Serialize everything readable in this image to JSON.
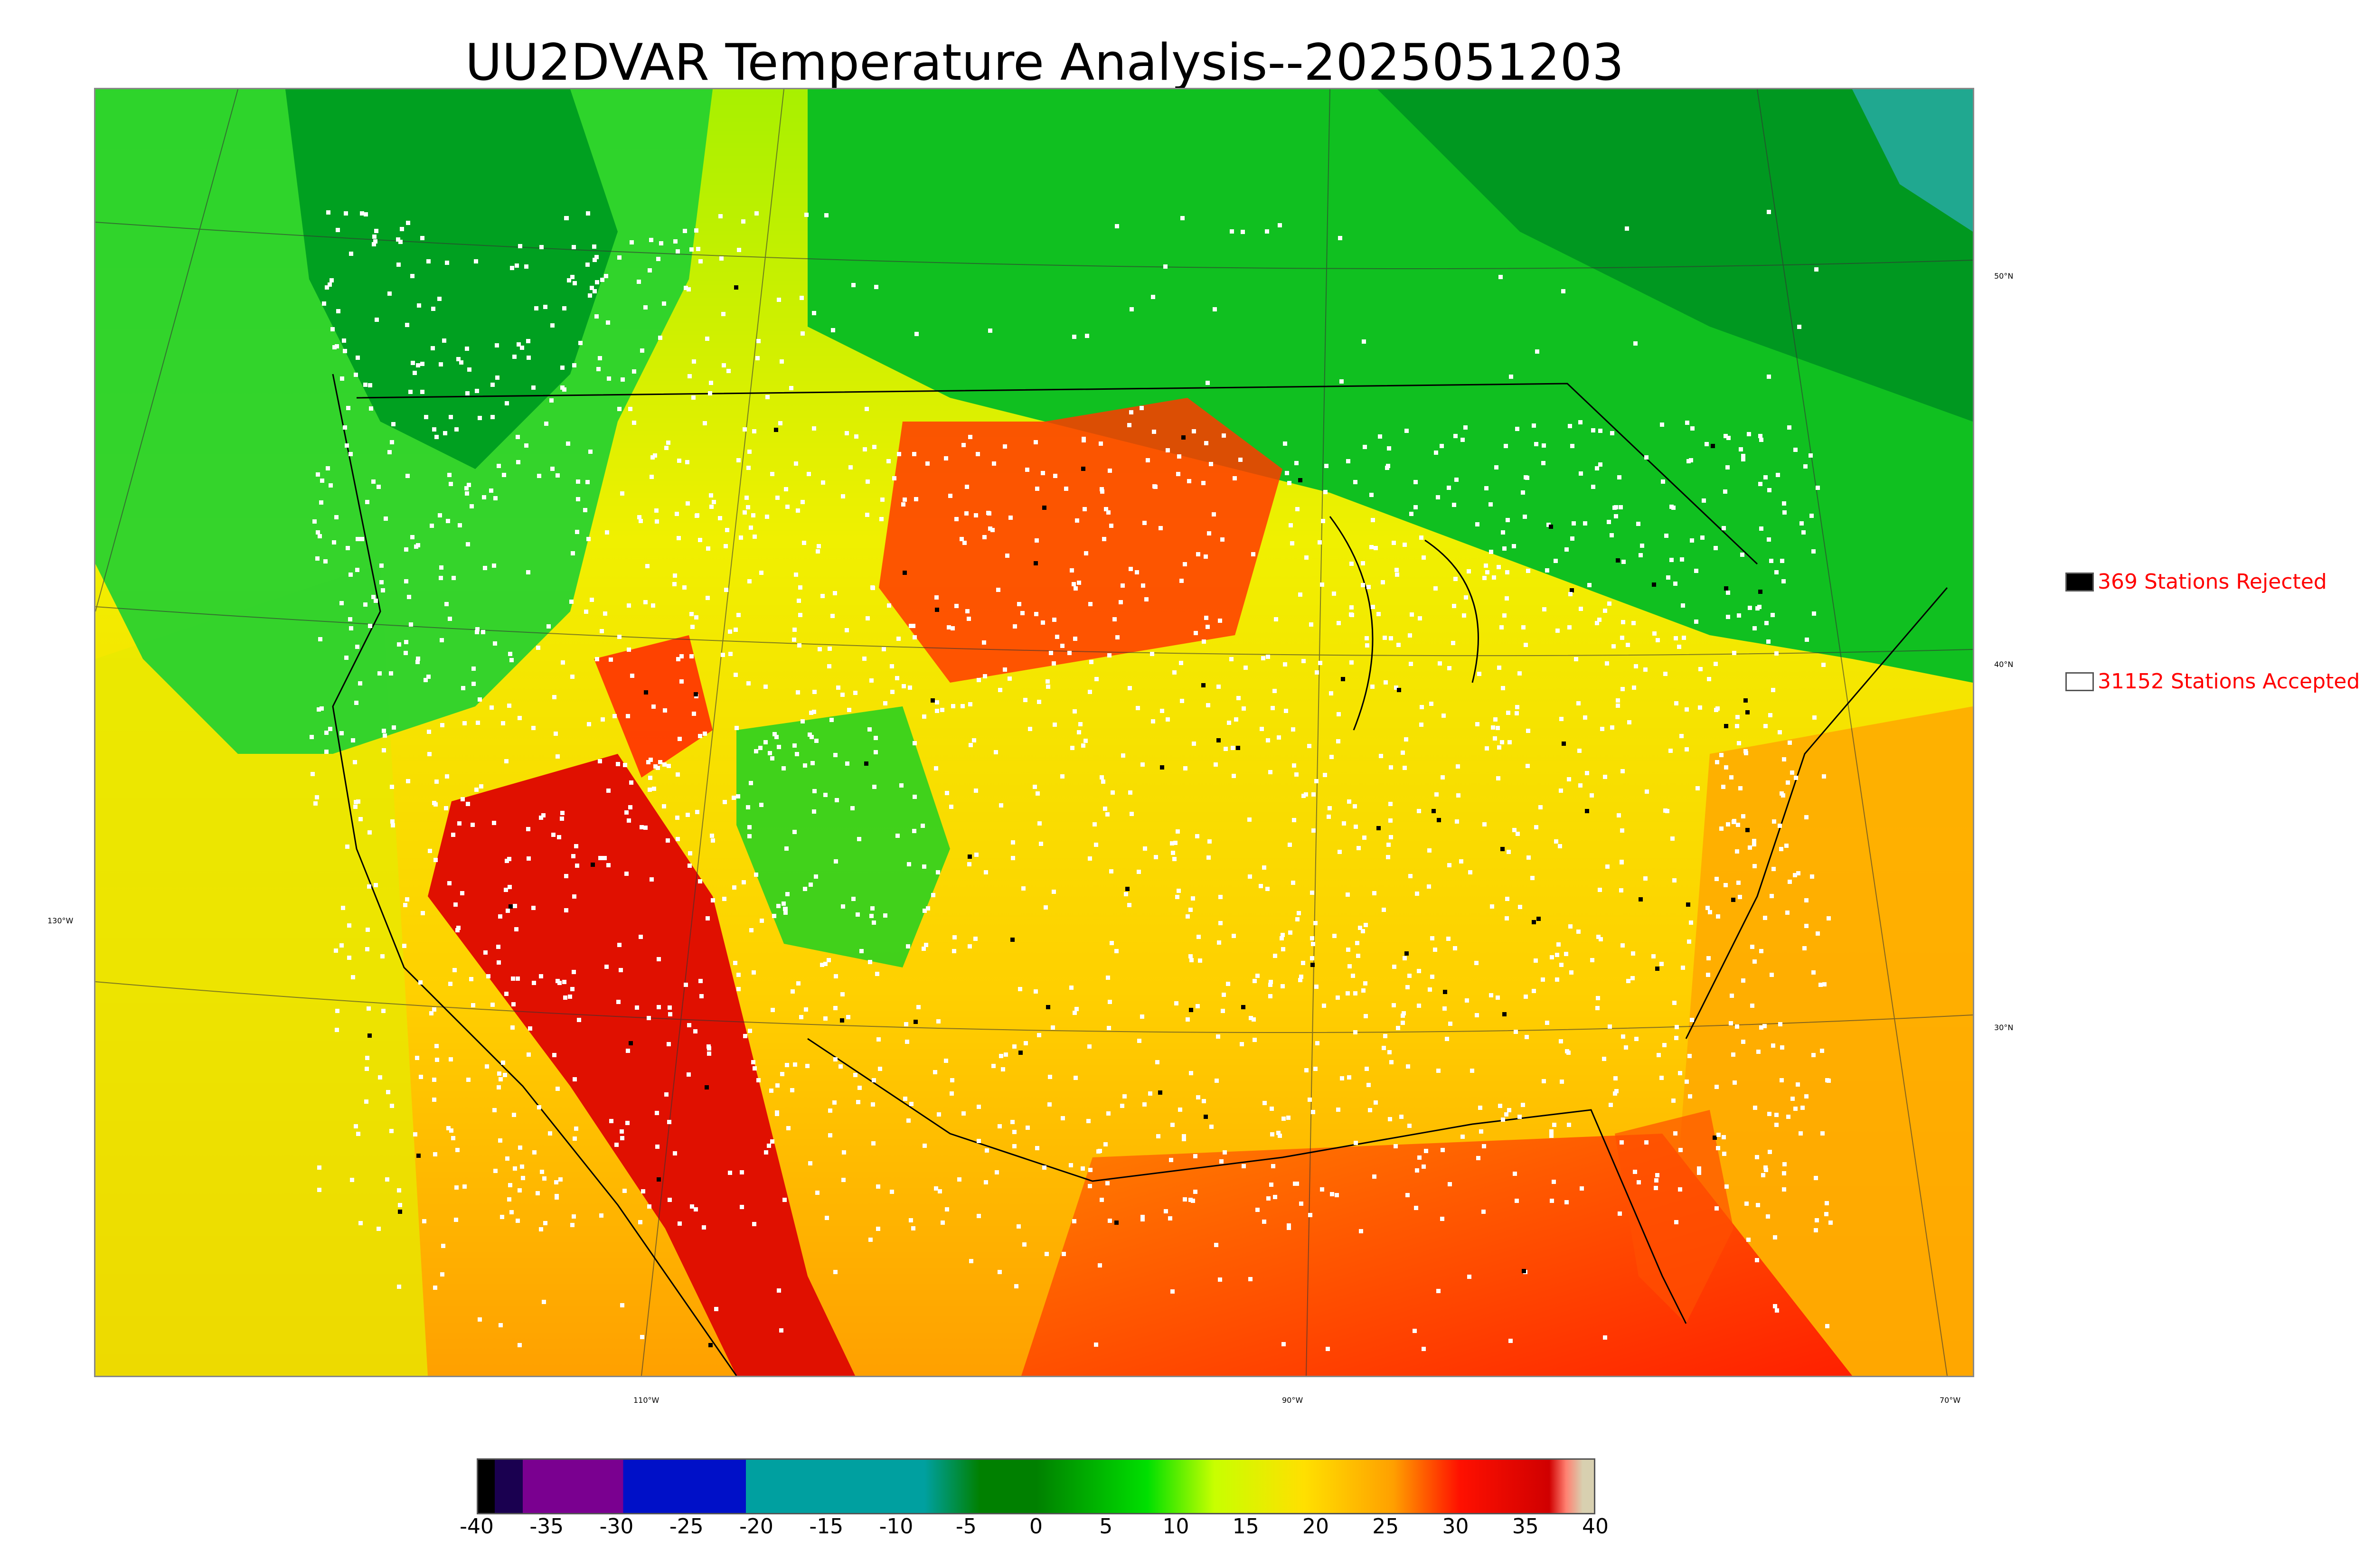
{
  "title": "UU2DVAR Temperature Analysis--2025051203",
  "legend": {
    "rejected": {
      "label": "369 Stations Rejected",
      "color": "#000000"
    },
    "accepted": {
      "label": "31152 Stations Accepted",
      "color": "#ffffff"
    }
  },
  "longitude_labels": [
    "130°W",
    "110°W",
    "90°W",
    "70°W"
  ],
  "latitude_labels": [
    "50°N",
    "40°N",
    "30°N"
  ],
  "colorbar": {
    "min": -40,
    "max": 40,
    "ticks": [
      "-40",
      "-35",
      "-30",
      "-25",
      "-20",
      "-15",
      "-10",
      "-5",
      "0",
      "5",
      "10",
      "15",
      "20",
      "25",
      "30",
      "35",
      "40"
    ],
    "colors": {
      "black": "#000000",
      "navy": "#1a0050",
      "purple": "#7a0090",
      "blue": "#0010c8",
      "teal": "#00a0a0",
      "dark_green": "#008000",
      "green": "#00e000",
      "lime": "#c8ff00",
      "yellow": "#ffe000",
      "orange": "#ffa000",
      "red": "#ff1000",
      "dark_red": "#d00000",
      "salmon": "#ff8070",
      "tan": "#d8d0b0"
    }
  }
}
